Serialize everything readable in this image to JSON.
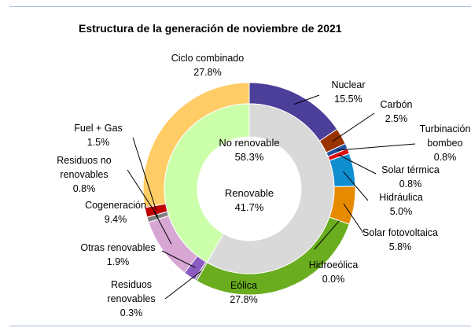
{
  "chart_data": {
    "type": "donut",
    "title": "Estructura de la generación de noviembre de 2021",
    "inner_ring": [
      {
        "name": "No renovable",
        "value": 58.3,
        "label": "58.3%",
        "color": "#d9d9d9"
      },
      {
        "name": "Renovable",
        "value": 41.7,
        "label": "41.7%",
        "color": "#ccffaa"
      }
    ],
    "outer_ring": [
      {
        "name": "Nuclear",
        "value": 15.5,
        "label": "15.5%",
        "color": "#4b3f99"
      },
      {
        "name": "Carbón",
        "value": 2.5,
        "label": "2.5%",
        "color": "#993300"
      },
      {
        "name": "Turbinación bombeo",
        "name_lines": [
          "Turbinación",
          "bombeo"
        ],
        "value": 0.8,
        "label": "0.8%",
        "color": "#1f4e9e"
      },
      {
        "name": "Solar térmica",
        "value": 0.8,
        "label": "0.8%",
        "color": "#dd1111"
      },
      {
        "name": "Hidráulica",
        "value": 5.0,
        "label": "5.0%",
        "color": "#0f8fd0"
      },
      {
        "name": "Solar fotovoltaica",
        "value": 5.8,
        "label": "5.8%",
        "color": "#e68a00"
      },
      {
        "name": "Hidroeólica",
        "value": 0.0,
        "label": "0.0%",
        "color": "#3366cc"
      },
      {
        "name": "Eólica",
        "value": 27.8,
        "label": "27.8%",
        "color": "#6aad1f"
      },
      {
        "name": "Residuos renovables",
        "name_lines": [
          "Residuos",
          "renovables"
        ],
        "value": 0.3,
        "label": "0.3%",
        "color": "#808080"
      },
      {
        "name": "Otras renovables",
        "value": 1.9,
        "label": "1.9%",
        "color": "#8a5cc2"
      },
      {
        "name": "Cogeneración",
        "value": 9.4,
        "label": "9.4%",
        "color": "#d7a6d3"
      },
      {
        "name": "Residuos no renovables",
        "name_lines": [
          "Residuos no",
          "renovables"
        ],
        "value": 0.8,
        "label": "0.8%",
        "color": "#7f7f7f"
      },
      {
        "name": "Fuel + Gas",
        "value": 1.5,
        "label": "1.5%",
        "color": "#c00000"
      },
      {
        "name": "Ciclo combinado",
        "value": 27.8,
        "label": "27.8%",
        "color": "#ffcc66"
      }
    ]
  }
}
